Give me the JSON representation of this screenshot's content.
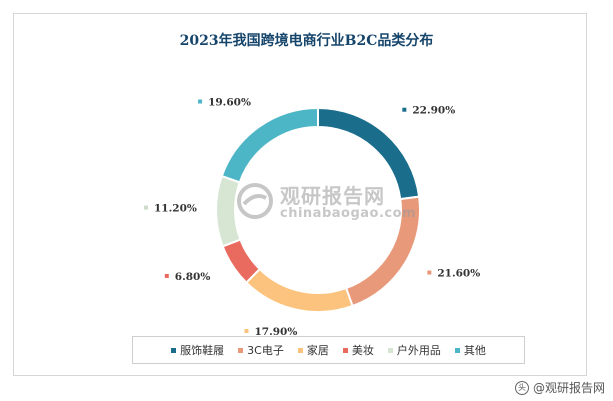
{
  "chart_data": {
    "type": "pie",
    "title": "2023年我国跨境电商行业B2C品类分布",
    "categories": [
      "服饰鞋履",
      "3C电子",
      "家居",
      "美妆",
      "户外用品",
      "其他"
    ],
    "values": [
      22.9,
      21.6,
      17.9,
      6.8,
      11.2,
      19.6
    ],
    "value_labels": [
      "22.90%",
      "21.60%",
      "17.90%",
      "6.80%",
      "11.20%",
      "19.60%"
    ],
    "colors": [
      "#1b6d8c",
      "#e8997a",
      "#fcc37e",
      "#e96a5e",
      "#d7e6d3",
      "#4db6c6"
    ],
    "donut": true,
    "legend_placement": "bottom"
  },
  "watermark": {
    "name": "观研报告网",
    "url": "chinabaogao.com"
  },
  "footer": {
    "text": "@观研报告网",
    "icon_label": "头"
  }
}
